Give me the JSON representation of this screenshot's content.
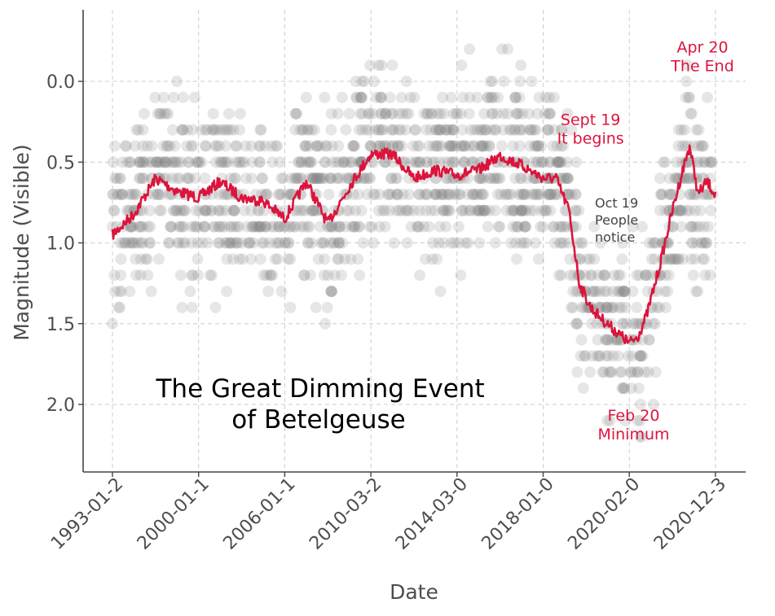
{
  "chart_data": {
    "type": "scatter",
    "title": "",
    "xlabel": "Date",
    "ylabel": "Magnitude (Visible)",
    "x_ticks": [
      "1993-01-2",
      "2000-01-1",
      "2006-01-1",
      "2010-03-2",
      "2014-03-0",
      "2018-01-0",
      "2020-02-0",
      "2020-12-3"
    ],
    "y_ticks": [
      "0.0",
      "0.5",
      "1.0",
      "1.5",
      "2.0"
    ],
    "y_tick_values": [
      0.0,
      0.5,
      1.0,
      1.5,
      2.0
    ],
    "ylim": [
      2.42,
      -0.43
    ],
    "y_inverted": true,
    "grid": true,
    "colors": {
      "observations": "#808080",
      "smoothed": "#dc143c",
      "axis": "#444444",
      "grid": "#cccccc"
    },
    "series": [
      {
        "kind": "observations",
        "style": "scatter",
        "note": "individual visual magnitude estimates, drawn as translucent gray dots"
      },
      {
        "kind": "smoothed",
        "style": "line",
        "x_tick_index": [
          0,
          0.25,
          0.5,
          0.75,
          1.0,
          1.25,
          1.5,
          1.75,
          2.0,
          2.25,
          2.5,
          2.75,
          3.0,
          3.25,
          3.5,
          3.75,
          4.0,
          4.25,
          4.5,
          4.75,
          5.0,
          5.15,
          5.3,
          5.42,
          5.55,
          5.7,
          5.85,
          6.0,
          6.1,
          6.2,
          6.35,
          6.5,
          6.62,
          6.7,
          6.8,
          6.9,
          7.0
        ],
        "magnitude": [
          0.95,
          0.82,
          0.6,
          0.68,
          0.72,
          0.62,
          0.72,
          0.74,
          0.85,
          0.62,
          0.88,
          0.65,
          0.45,
          0.45,
          0.6,
          0.55,
          0.58,
          0.55,
          0.46,
          0.52,
          0.6,
          0.6,
          0.8,
          1.25,
          1.4,
          1.48,
          1.55,
          1.62,
          1.58,
          1.45,
          1.15,
          0.8,
          0.55,
          0.4,
          0.7,
          0.62,
          0.7
        ]
      }
    ],
    "annotations": [
      {
        "text_lines": [
          "Sept 19",
          "It begins"
        ],
        "color": "red",
        "x_tick_index": 5.55,
        "magnitude": 0.27
      },
      {
        "text_lines": [
          "Oct 19",
          "People",
          "notice"
        ],
        "color": "gray",
        "x_tick_index": 5.62,
        "magnitude": 0.78
      },
      {
        "text_lines": [
          "Feb 20",
          "Minimum"
        ],
        "color": "red",
        "x_tick_index": 6.05,
        "magnitude": 2.1
      },
      {
        "text_lines": [
          "Apr 20",
          "The End"
        ],
        "color": "red",
        "x_tick_index": 6.85,
        "magnitude": -0.18
      }
    ],
    "text_block": [
      "The Great Dimming Event",
      "of Betelgeuse"
    ]
  }
}
